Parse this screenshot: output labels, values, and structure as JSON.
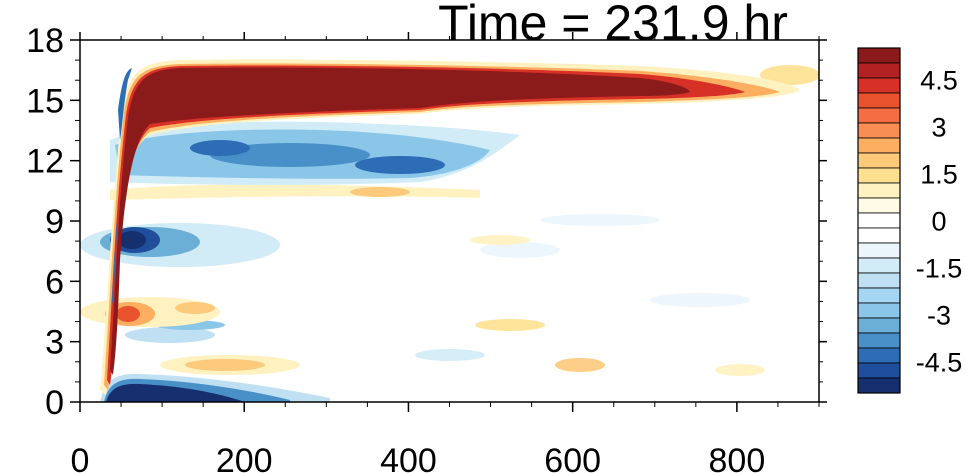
{
  "chart_data": {
    "type": "heatmap",
    "title": "Time = 231.9 hr",
    "xlabel": "",
    "ylabel": "",
    "xlim": [
      0,
      900
    ],
    "ylim": [
      0,
      18
    ],
    "x_ticks": [
      "0",
      "200",
      "400",
      "600",
      "800"
    ],
    "y_ticks": [
      "0",
      "3",
      "6",
      "9",
      "12",
      "15",
      "18"
    ],
    "colorbar": {
      "labels": [
        "4.5",
        "3",
        "1.5",
        "0",
        "-1.5",
        "-3",
        "-4.5"
      ],
      "range": [
        -5.5,
        5.5
      ],
      "colors": [
        "#8b1a1a",
        "#b22222",
        "#d73027",
        "#e8532e",
        "#f46d43",
        "#f98e52",
        "#fdae61",
        "#fdc97b",
        "#fee090",
        "#fff2c0",
        "#fffbe6",
        "#ffffff",
        "#ffffff",
        "#eaf6fc",
        "#d1ecf7",
        "#bfe0f2",
        "#a5d6f4",
        "#8ac6e8",
        "#6baed6",
        "#4a90c8",
        "#2d6db5",
        "#1f4e9c",
        "#162f6e"
      ]
    },
    "features": [
      {
        "name": "upper-positive-band",
        "x": [
          40,
          800
        ],
        "y": [
          13.5,
          16.8
        ],
        "peak": 5.5
      },
      {
        "name": "negative-band-under-upper",
        "x": [
          60,
          500
        ],
        "y": [
          11.0,
          13.5
        ],
        "peak": -4.0
      },
      {
        "name": "weak-positive-band",
        "x": [
          60,
          500
        ],
        "y": [
          10.0,
          11.0
        ],
        "peak": 1.5
      },
      {
        "name": "negative-blob",
        "x": [
          50,
          170
        ],
        "y": [
          7.0,
          9.0
        ],
        "peak": -5.5
      },
      {
        "name": "positive-blob",
        "x": [
          50,
          140
        ],
        "y": [
          3.5,
          5.5
        ],
        "peak": 4.0
      },
      {
        "name": "bottom-negative-band",
        "x": [
          30,
          310
        ],
        "y": [
          0,
          1.3
        ],
        "peak": -5.5
      },
      {
        "name": "weak-positive-near-bottom",
        "x": [
          140,
          300
        ],
        "y": [
          1.0,
          2.5
        ],
        "peak": 2.0
      }
    ]
  }
}
